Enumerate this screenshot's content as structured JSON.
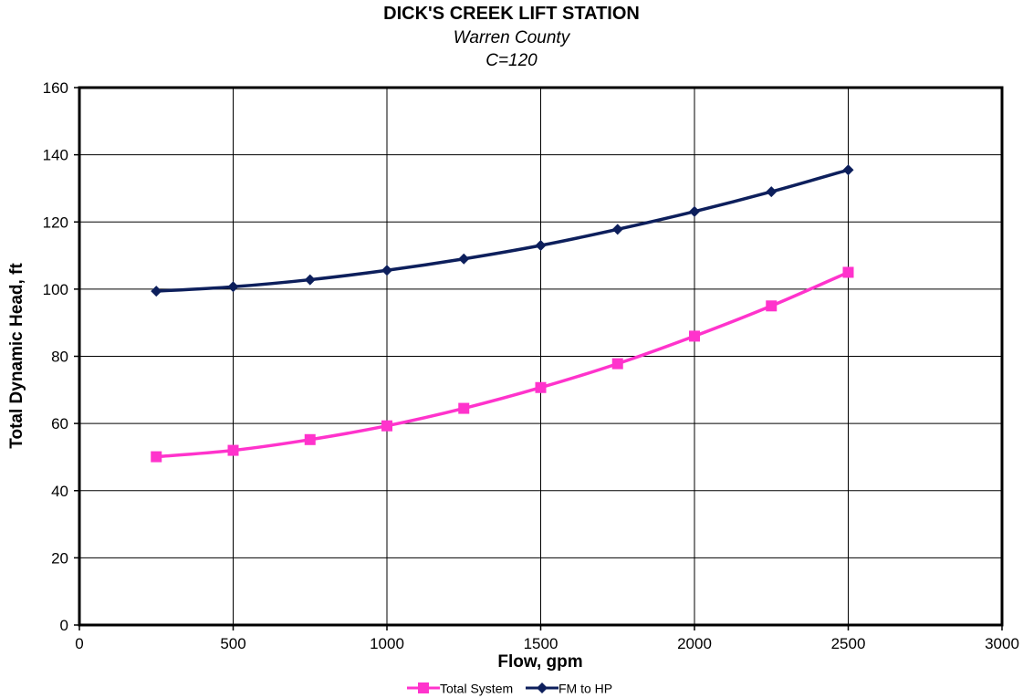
{
  "chart_data": {
    "type": "line",
    "title": "DICK'S CREEK LIFT STATION",
    "subtitle": "Warren County",
    "subtitle2": "C=120",
    "xlabel": "Flow, gpm",
    "ylabel": "Total Dynamic Head, ft",
    "xlim": [
      0,
      3000
    ],
    "ylim": [
      0,
      160
    ],
    "xticks": [
      0,
      500,
      1000,
      1500,
      2000,
      2500,
      3000
    ],
    "yticks": [
      0,
      20,
      40,
      60,
      80,
      100,
      120,
      140,
      160
    ],
    "grid": true,
    "legend_position": "bottom",
    "x": [
      250,
      500,
      750,
      1000,
      1250,
      1500,
      1750,
      2000,
      2250,
      2500
    ],
    "series": [
      {
        "name": "Total System",
        "color": "#ff33cc",
        "marker": "square",
        "values": [
          50.1,
          52.0,
          55.2,
          59.3,
          64.5,
          70.7,
          77.8,
          86.0,
          95.0,
          105.0
        ]
      },
      {
        "name": "FM to HP",
        "color": "#0d1f5c",
        "marker": "diamond",
        "values": [
          99.4,
          100.7,
          102.8,
          105.6,
          109.0,
          113.0,
          117.8,
          123.1,
          129.0,
          135.5
        ]
      }
    ]
  }
}
